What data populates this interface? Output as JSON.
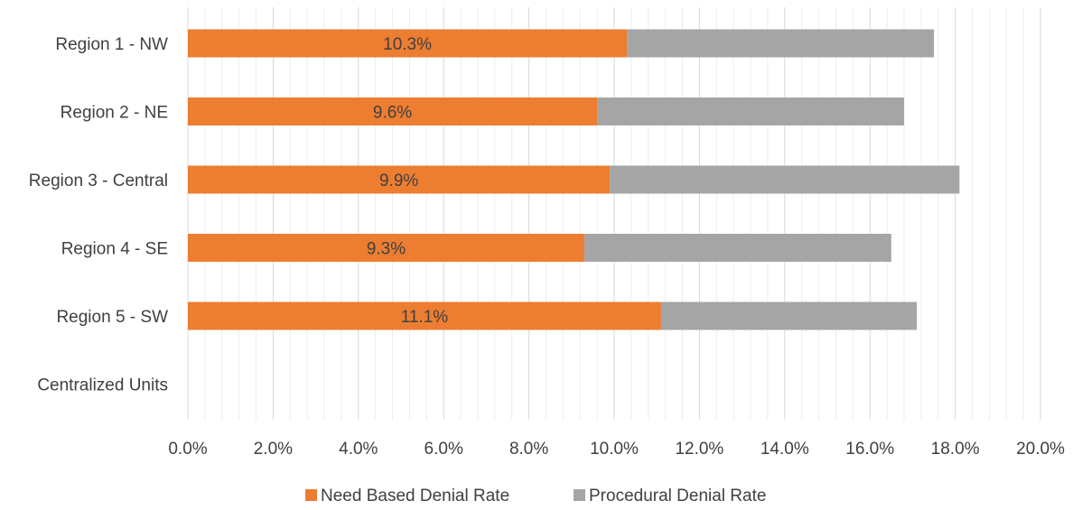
{
  "chart_data": {
    "type": "bar",
    "orientation": "horizontal",
    "stacked": true,
    "categories": [
      "Region 1 - NW",
      "Region 2 - NE",
      "Region 3 - Central",
      "Region 4 - SE",
      "Region 5 - SW",
      "Centralized Units"
    ],
    "series": [
      {
        "name": "Need Based Denial Rate",
        "color": "#ED7D31",
        "values": [
          10.3,
          9.6,
          9.9,
          9.3,
          11.1,
          0
        ],
        "data_labels": [
          "10.3%",
          "9.6%",
          "9.9%",
          "9.3%",
          "11.1%",
          ""
        ]
      },
      {
        "name": "Procedural Denial Rate",
        "color": "#A5A5A5",
        "values": [
          7.2,
          7.2,
          8.2,
          7.2,
          6.0,
          0
        ]
      }
    ],
    "xlim": [
      0,
      20
    ],
    "x_major_step": 2,
    "x_minor_step": 0.4,
    "x_tick_labels": [
      "0.0%",
      "2.0%",
      "4.0%",
      "6.0%",
      "8.0%",
      "10.0%",
      "12.0%",
      "14.0%",
      "16.0%",
      "18.0%",
      "20.0%"
    ],
    "grid": true,
    "legend": "bottom",
    "title": "",
    "xlabel": "",
    "ylabel": ""
  }
}
